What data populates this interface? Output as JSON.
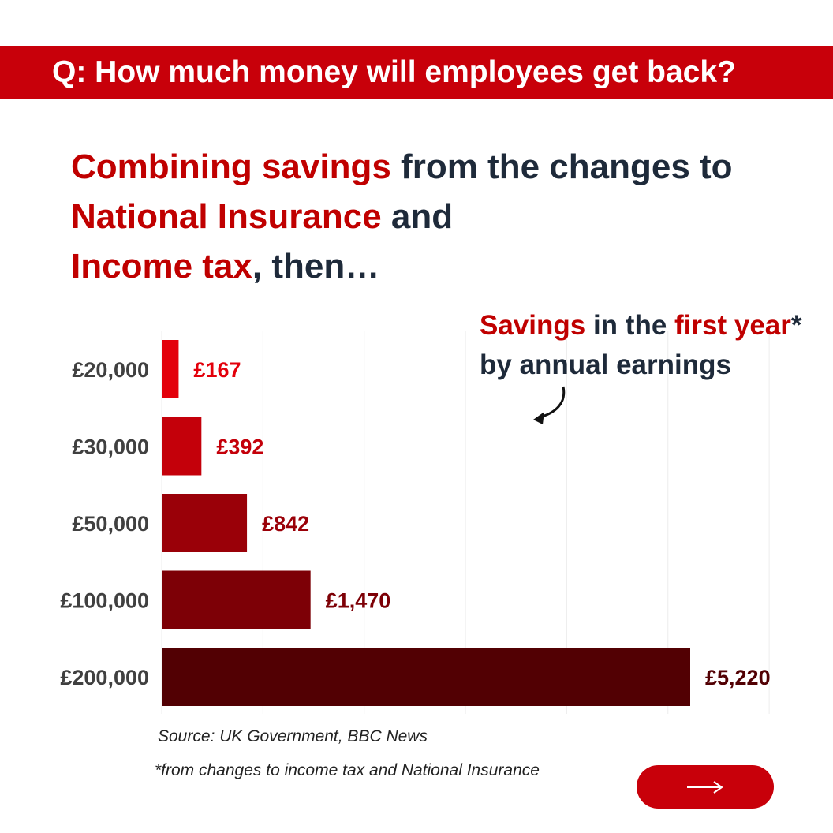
{
  "banner": {
    "title": "Q: How much money will employees get back?"
  },
  "headline": {
    "p1": "Combining savings",
    "p2": " from the changes to ",
    "p3": "National Insurance",
    "p4": " and ",
    "p5": "Income tax",
    "p6": ", then…"
  },
  "legend_note": {
    "w1": "Savings",
    "w2": " in the ",
    "w3": "first year",
    "w4": "*",
    "line2": "by annual earnings"
  },
  "chart_data": {
    "type": "bar",
    "orientation": "horizontal",
    "categories": [
      "£20,000",
      "£30,000",
      "£50,000",
      "£100,000",
      "£200,000"
    ],
    "values": [
      167,
      392,
      842,
      1470,
      5220
    ],
    "value_labels": [
      "£167",
      "£392",
      "£842",
      "£1,470",
      "£5,220"
    ],
    "bar_colors": [
      "#e3000b",
      "#c4000a",
      "#9a0008",
      "#7d0006",
      "#520003"
    ],
    "xlim": [
      0,
      6000
    ],
    "grid": true
  },
  "source": "Source: UK Government,  BBC News",
  "footnote": "*from changes to income tax and National Insurance",
  "next_button": {
    "icon": "arrow-right-icon"
  }
}
